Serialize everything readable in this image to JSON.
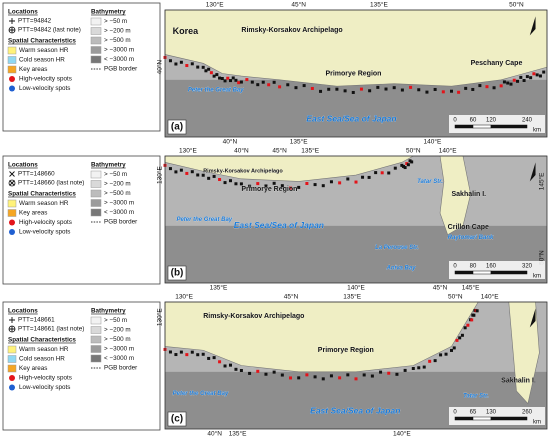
{
  "panels": [
    {
      "letter": "(a)",
      "legend": {
        "locations": {
          "title": "Locations",
          "items": [
            "PTT=94842",
            "PTT=94842 (last note)"
          ]
        },
        "spatial": {
          "title": "Spatial Characteristics",
          "items": [
            {
              "label": "Warm season HR",
              "color": "#fff27a",
              "marker": "square"
            },
            {
              "label": "Cold season HR",
              "color": "#8fd8f2",
              "marker": "square"
            },
            {
              "label": "Key areas",
              "color": "#f5a623",
              "marker": "square"
            },
            {
              "label": "High-velocity spots",
              "color": "#e3141a",
              "marker": "circle"
            },
            {
              "label": "Low-velocity spots",
              "color": "#1f5fd1",
              "marker": "circle"
            }
          ]
        },
        "bathymetry": {
          "title": "Bathymetry",
          "items": [
            {
              "label": "> −50 m",
              "color": "#f2f2f2"
            },
            {
              "label": "> −200 m",
              "color": "#d9d9d9"
            },
            {
              "label": "> −500 m",
              "color": "#bcbcbc"
            },
            {
              "label": "> −3000 m",
              "color": "#9b9b9b"
            },
            {
              "label": "< −3000 m",
              "color": "#777777"
            },
            {
              "label": "PGB border",
              "marker": "dashed"
            }
          ]
        }
      },
      "map": {
        "top": [
          "130°E",
          "45°N",
          "135°E",
          "50°N"
        ],
        "left": [
          "40°N"
        ],
        "right": [],
        "bottom": [
          "40°N",
          "135°E",
          "140°E"
        ],
        "places": [
          "Korea",
          "Rimsky-Korsakov Archipelago",
          "Primorye Region",
          "Peschany Cape",
          "Peter the Great Bay",
          "East Sea/Sea of Japan"
        ],
        "scale": [
          "0",
          "60",
          "120",
          "240",
          "km"
        ]
      }
    },
    {
      "letter": "(b)",
      "legend": {
        "locations": {
          "title": "Locations",
          "items": [
            "PTT=148660",
            "PTT=148660 (last note)"
          ]
        },
        "spatial": {
          "title": "Spatial Characteristics",
          "items": [
            {
              "label": "Warm season HR",
              "color": "#fff27a",
              "marker": "square"
            },
            {
              "label": "Key areas",
              "color": "#f5a623",
              "marker": "square"
            },
            {
              "label": "High-velocity spots",
              "color": "#e3141a",
              "marker": "circle"
            },
            {
              "label": "Low-velocity spots",
              "color": "#1f5fd1",
              "marker": "circle"
            }
          ]
        },
        "bathymetry": {
          "title": "Bathymetry",
          "items": [
            {
              "label": "> −50 m",
              "color": "#f2f2f2"
            },
            {
              "label": "> −200 m",
              "color": "#d9d9d9"
            },
            {
              "label": "> −500 m",
              "color": "#bcbcbc"
            },
            {
              "label": "> −3000 m",
              "color": "#9b9b9b"
            },
            {
              "label": "< −3000 m",
              "color": "#777777"
            },
            {
              "label": "PGB border",
              "marker": "dashed"
            }
          ]
        }
      },
      "map": {
        "top": [
          "130°E",
          "40°N",
          "45°N",
          "135°E",
          "50°N",
          "140°E"
        ],
        "left": [
          "130°E"
        ],
        "right": [
          "145°E",
          "50°N"
        ],
        "bottom": [
          "135°E",
          "140°E",
          "45°N",
          "145°E"
        ],
        "places": [
          "Rimsky-Korsakov Archipelago",
          "Primorye Region",
          "Peter the Great Bay",
          "Tatar Str.",
          "Sakhalin I.",
          "Crillon Cape",
          "Raytomari Bank",
          "La Perouse Str.",
          "Aniva Bay",
          "East Sea/Sea of Japan"
        ],
        "scale": [
          "0",
          "80",
          "160",
          "320",
          "km"
        ]
      }
    },
    {
      "letter": "(c)",
      "legend": {
        "locations": {
          "title": "Locations",
          "items": [
            "PTT=148661",
            "PTT=148661 (last note)"
          ]
        },
        "spatial": {
          "title": "Spatial Characteristics",
          "items": [
            {
              "label": "Warm season HR",
              "color": "#fff27a",
              "marker": "square"
            },
            {
              "label": "Cold season HR",
              "color": "#8fd8f2",
              "marker": "square"
            },
            {
              "label": "Key areas",
              "color": "#f5a623",
              "marker": "square"
            },
            {
              "label": "High-velocity spots",
              "color": "#e3141a",
              "marker": "circle"
            },
            {
              "label": "Low-velocity spots",
              "color": "#1f5fd1",
              "marker": "circle"
            }
          ]
        },
        "bathymetry": {
          "title": "Bathymetry",
          "items": [
            {
              "label": "> −50 m",
              "color": "#f2f2f2"
            },
            {
              "label": "> −200 m",
              "color": "#d9d9d9"
            },
            {
              "label": "> −500 m",
              "color": "#bcbcbc"
            },
            {
              "label": "> −3000 m",
              "color": "#9b9b9b"
            },
            {
              "label": "< −3000 m",
              "color": "#777777"
            },
            {
              "label": "PGB border",
              "marker": "dashed"
            }
          ]
        }
      },
      "map": {
        "top": [
          "130°E",
          "45°N",
          "135°E",
          "50°N",
          "140°E"
        ],
        "left": [
          "130°E"
        ],
        "right": [],
        "bottom": [
          "40°N",
          "135°E",
          "140°E"
        ],
        "places": [
          "Rimsky-Korsakov Archipelago",
          "Primorye Region",
          "Peter the Great Bay",
          "Tatar Str.",
          "Sakhalin I.",
          "East Sea/Sea of Japan"
        ],
        "scale": [
          "0",
          "65",
          "130",
          "260",
          "km"
        ]
      }
    }
  ]
}
